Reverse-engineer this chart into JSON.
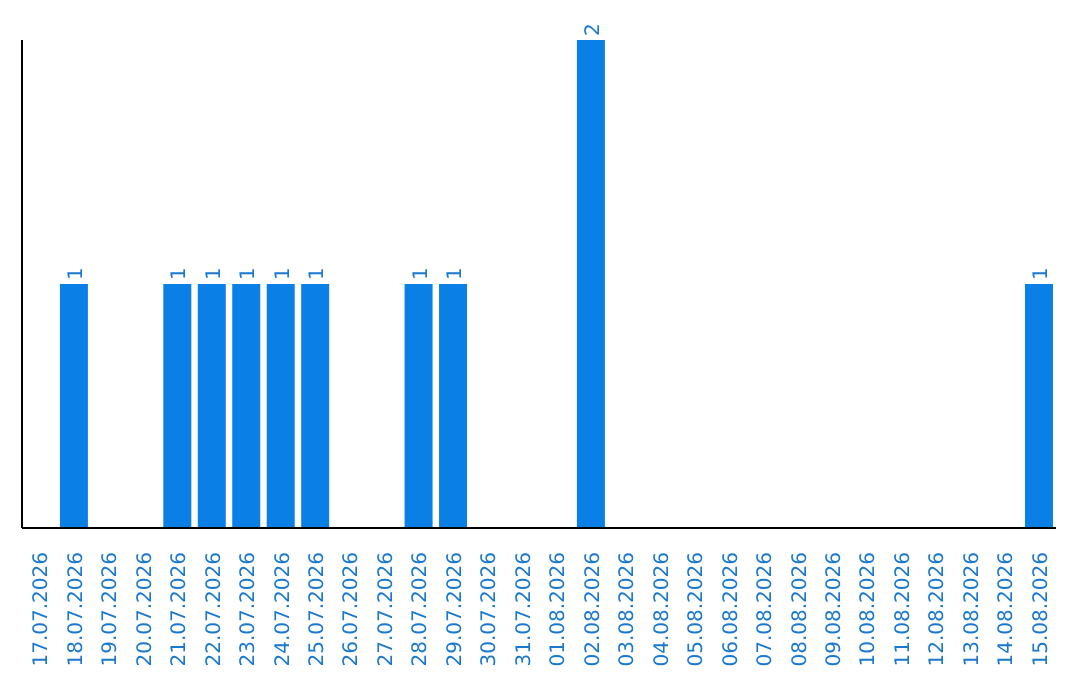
{
  "chart_data": {
    "type": "bar",
    "categories": [
      "17.07.2026",
      "18.07.2026",
      "19.07.2026",
      "20.07.2026",
      "21.07.2026",
      "22.07.2026",
      "23.07.2026",
      "24.07.2026",
      "25.07.2026",
      "26.07.2026",
      "27.07.2026",
      "28.07.2026",
      "29.07.2026",
      "30.07.2026",
      "31.07.2026",
      "01.08.2026",
      "02.08.2026",
      "03.08.2026",
      "04.08.2026",
      "05.08.2026",
      "06.08.2026",
      "07.08.2026",
      "08.08.2026",
      "09.08.2026",
      "10.08.2026",
      "11.08.2026",
      "12.08.2026",
      "13.08.2026",
      "14.08.2026",
      "15.08.2026"
    ],
    "values": [
      0,
      1,
      0,
      0,
      1,
      1,
      1,
      1,
      1,
      0,
      0,
      1,
      1,
      0,
      0,
      0,
      2,
      0,
      0,
      0,
      0,
      0,
      0,
      0,
      0,
      0,
      0,
      0,
      0,
      1
    ],
    "value_labels": [
      null,
      "1",
      null,
      null,
      "1",
      "1",
      "1",
      "1",
      "1",
      null,
      null,
      "1",
      "1",
      null,
      null,
      null,
      "2",
      null,
      null,
      null,
      null,
      null,
      null,
      null,
      null,
      null,
      null,
      null,
      null,
      "1"
    ],
    "color": "#0a7fe6"
  }
}
